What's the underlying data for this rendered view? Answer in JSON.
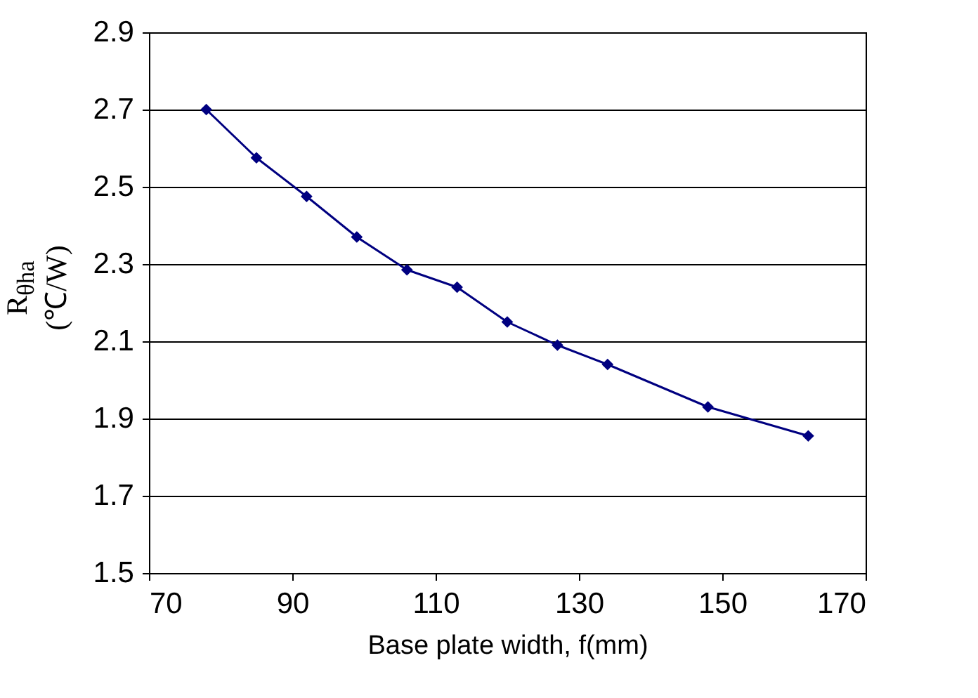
{
  "chart_data": {
    "type": "line",
    "xlabel": "Base plate width, f(mm)",
    "ylabel": "R$_{θha}$ (℃/W)",
    "x": [
      78,
      85,
      92,
      99,
      106,
      113,
      120,
      127,
      134,
      148,
      162
    ],
    "series": [
      {
        "color": "#000080",
        "values": [
          2.7,
          2.575,
          2.475,
          2.37,
          2.285,
          2.24,
          2.15,
          2.09,
          2.04,
          1.93,
          1.855
        ]
      }
    ],
    "xlim": [
      70,
      170
    ],
    "xticks": [
      70,
      90,
      110,
      130,
      150,
      170
    ],
    "ylim": [
      1.5,
      2.9
    ],
    "yticks": [
      1.5,
      1.7,
      1.9,
      2.1,
      2.3,
      2.5,
      2.7,
      2.9
    ],
    "grid": "y",
    "marker": "diamond",
    "line_style": "solid",
    "legend": false
  }
}
